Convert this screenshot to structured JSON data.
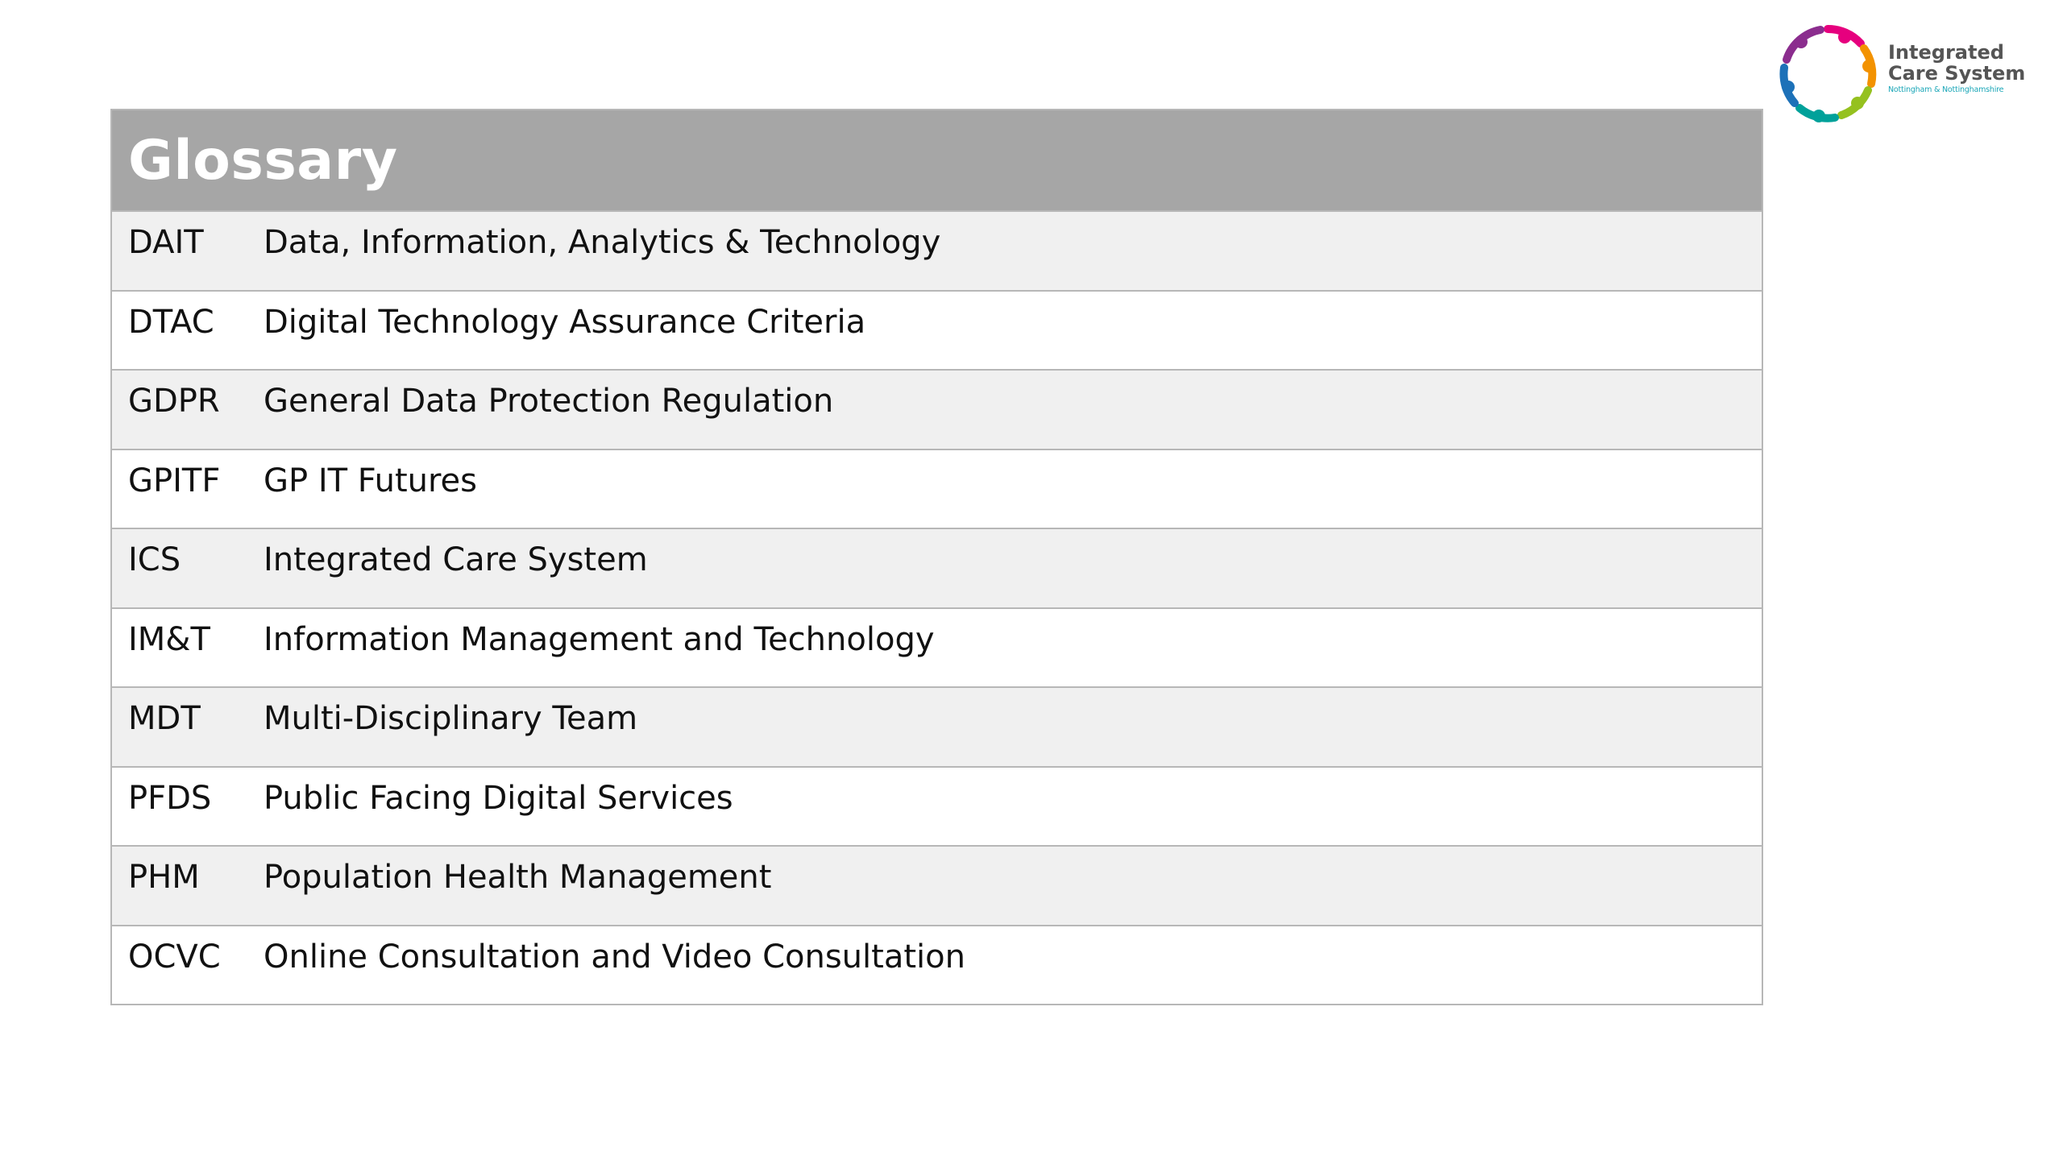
{
  "logo": {
    "line1": "Integrated",
    "line2": "Care System",
    "subtitle": "Nottingham & Nottinghamshire",
    "colors": [
      "#8b2d8e",
      "#e6007e",
      "#f39200",
      "#95c11f",
      "#00a19a",
      "#1d71b8"
    ]
  },
  "glossary": {
    "title": "Glossary",
    "rows": [
      {
        "abbr": "DAIT",
        "definition": "Data, Information, Analytics & Technology"
      },
      {
        "abbr": "DTAC",
        "definition": "Digital Technology Assurance Criteria"
      },
      {
        "abbr": "GDPR",
        "definition": "General Data Protection Regulation"
      },
      {
        "abbr": "GPITF",
        "definition": "GP IT Futures"
      },
      {
        "abbr": "ICS",
        "definition": "Integrated Care System"
      },
      {
        "abbr": "IM&T",
        "definition": "Information Management and Technology"
      },
      {
        "abbr": "MDT",
        "definition": "Multi-Disciplinary Team"
      },
      {
        "abbr": "PFDS",
        "definition": "Public Facing Digital Services"
      },
      {
        "abbr": "PHM",
        "definition": "Population Health Management"
      },
      {
        "abbr": "OCVC",
        "definition": "Online Consultation and Video Consultation"
      }
    ]
  }
}
